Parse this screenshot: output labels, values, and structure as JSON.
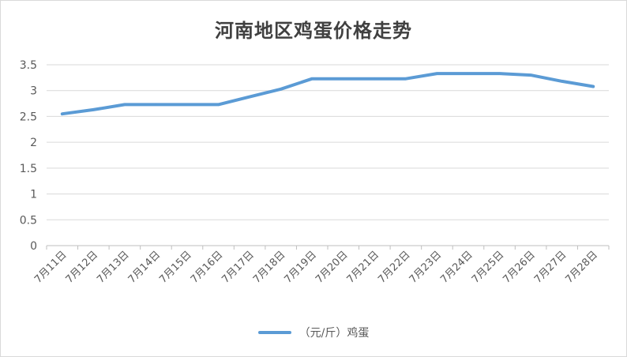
{
  "chart_data": {
    "type": "line",
    "title": "河南地区鸡蛋价格走势",
    "categories": [
      "7月11日",
      "7月12日",
      "7月13日",
      "7月14日",
      "7月15日",
      "7月16日",
      "7月17日",
      "7月18日",
      "7月19日",
      "7月20日",
      "7月21日",
      "7月22日",
      "7月23日",
      "7月24日",
      "7月25日",
      "7月26日",
      "7月27日",
      "7月28日"
    ],
    "series": [
      {
        "name": "（元/斤）鸡蛋",
        "values": [
          2.55,
          2.63,
          2.73,
          2.73,
          2.73,
          2.73,
          2.88,
          3.03,
          3.23,
          3.23,
          3.23,
          3.23,
          3.33,
          3.33,
          3.33,
          3.3,
          3.18,
          3.08
        ],
        "color": "#5b9bd5"
      }
    ],
    "ylim": [
      0,
      3.5
    ],
    "yticks": [
      "0",
      "0.5",
      "1",
      "1.5",
      "2",
      "2.5",
      "3",
      "3.5"
    ],
    "grid": true,
    "legend_position": "bottom"
  }
}
